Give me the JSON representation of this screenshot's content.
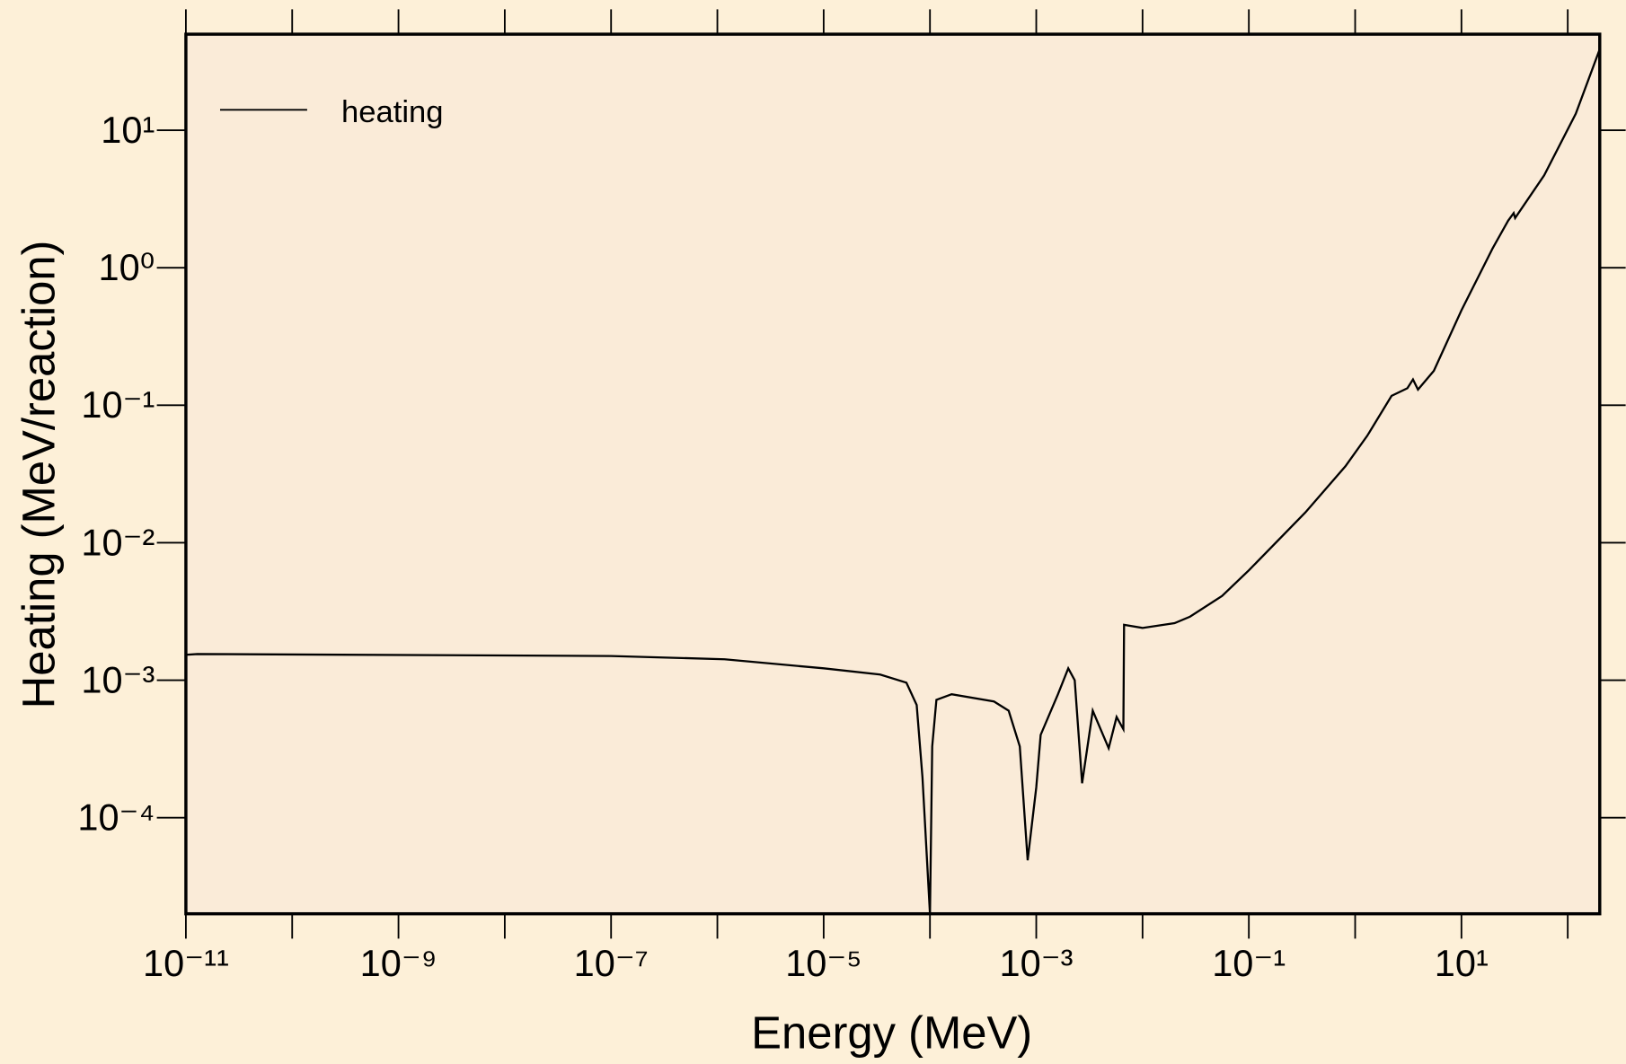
{
  "chart_data": {
    "type": "line",
    "xlabel": "Energy (MeV)",
    "ylabel": "Heating (MeV/reaction)",
    "xscale": "log",
    "yscale": "log",
    "xlim": [
      1e-11,
      200
    ],
    "ylim": [
      2e-05,
      50
    ],
    "xticks": [
      {
        "value": 1e-11,
        "label": "10⁻¹¹"
      },
      {
        "value": 1e-09,
        "label": "10⁻⁹"
      },
      {
        "value": 1e-07,
        "label": "10⁻⁷"
      },
      {
        "value": 1e-05,
        "label": "10⁻⁵"
      },
      {
        "value": 0.001,
        "label": "10⁻³"
      },
      {
        "value": 0.1,
        "label": "10⁻¹"
      },
      {
        "value": 10,
        "label": "10¹"
      }
    ],
    "xminorticks": [
      1e-10,
      1e-08,
      1e-06,
      0.0001,
      0.01,
      1,
      100
    ],
    "yticks": [
      {
        "value": 0.0001,
        "label": "10⁻⁴"
      },
      {
        "value": 0.001,
        "label": "10⁻³"
      },
      {
        "value": 0.01,
        "label": "10⁻²"
      },
      {
        "value": 0.1,
        "label": "10⁻¹"
      },
      {
        "value": 1,
        "label": "10⁰"
      },
      {
        "value": 10,
        "label": "10¹"
      }
    ],
    "legend": "upper left",
    "x": [
      1e-11,
      1.28e-11,
      1e-07,
      1.17e-06,
      1e-05,
      3.4e-05,
      6e-05,
      7.5e-05,
      8.5e-05,
      0.0001,
      0.000105,
      0.000115,
      0.00016,
      0.0004,
      0.00055,
      0.0007,
      0.00083,
      0.001,
      0.0011,
      0.0016,
      0.002,
      0.0023,
      0.0027,
      0.0034,
      0.0048,
      0.0057,
      0.0066,
      0.0067,
      0.01,
      0.02,
      0.028,
      0.056,
      0.1,
      0.34,
      0.81,
      1.3,
      2.2,
      3.1,
      3.5,
      3.9,
      5.5,
      10,
      19.6,
      27.5,
      31,
      32,
      60,
      119,
      200
    ],
    "series": [
      {
        "name": "heating",
        "color": "#000000",
        "values": [
          0.00153,
          0.00155,
          0.0015,
          0.00142,
          0.00122,
          0.0011,
          0.00096,
          0.00066,
          0.000197,
          2e-05,
          0.00033,
          0.00072,
          0.00079,
          0.0007,
          0.0006,
          0.00033,
          4.9e-05,
          0.000166,
          0.0004,
          0.00079,
          0.00122,
          0.001,
          0.000178,
          0.0006,
          0.00032,
          0.00054,
          0.00044,
          0.00253,
          0.0024,
          0.0026,
          0.0029,
          0.0041,
          0.0063,
          0.0166,
          0.036,
          0.06,
          0.117,
          0.133,
          0.154,
          0.13,
          0.178,
          0.49,
          1.38,
          2.2,
          2.5,
          2.3,
          4.7,
          13.2,
          38.9
        ]
      }
    ]
  }
}
